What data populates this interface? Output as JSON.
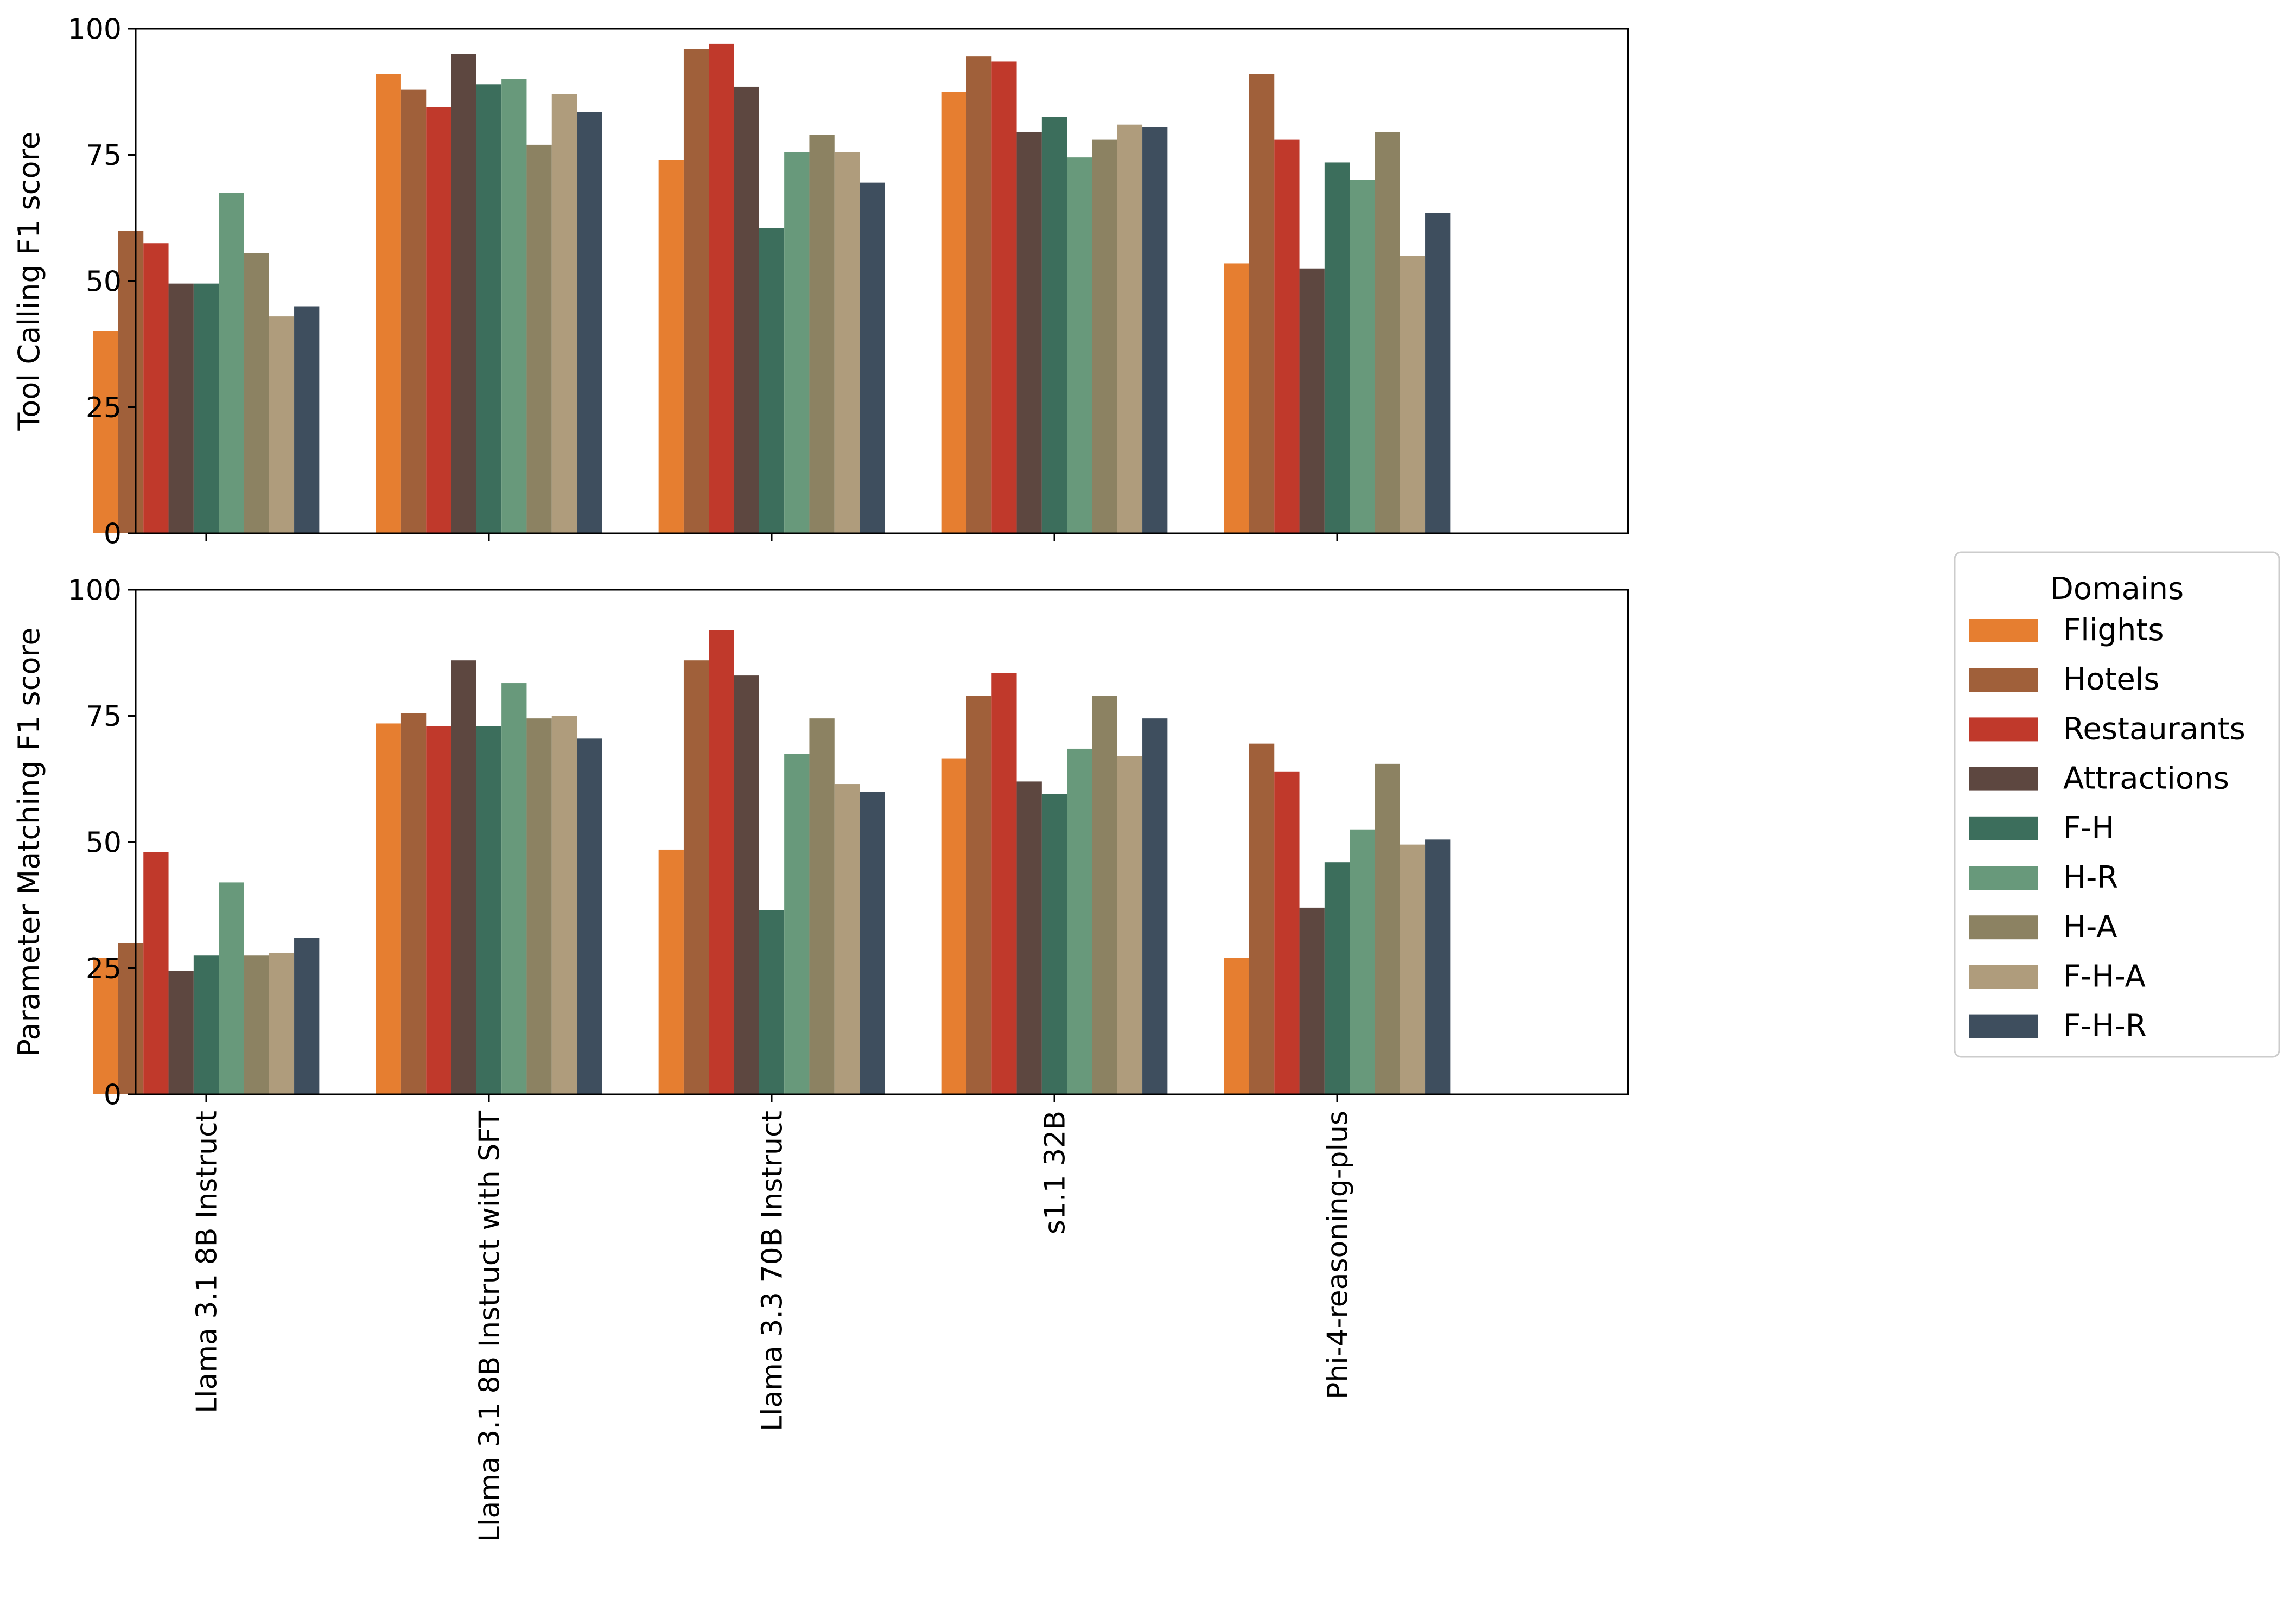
{
  "chart_data": [
    {
      "type": "bar",
      "title": "",
      "xlabel": "",
      "ylabel": "Tool Calling F1 score",
      "ylim": [
        0,
        100
      ],
      "yticks": [
        "0",
        "25",
        "50",
        "75",
        "100"
      ],
      "show_xtick_labels": false,
      "categories": [
        "Llama 3.1 8B Instruct",
        "Llama 3.1 8B Instruct with SFT",
        "Llama 3.3 70B Instruct",
        "s1.1 32B",
        "Phi-4-reasoning-plus"
      ],
      "series": [
        {
          "name": "Flights",
          "color": "#E67E30",
          "values": [
            40,
            91,
            74,
            87.5,
            53.5
          ]
        },
        {
          "name": "Hotels",
          "color": "#A0603A",
          "values": [
            60,
            88,
            96,
            94.5,
            91
          ]
        },
        {
          "name": "Restaurants",
          "color": "#C0392B",
          "values": [
            57.5,
            84.5,
            97,
            93.5,
            78
          ]
        },
        {
          "name": "Attractions",
          "color": "#5D4740",
          "values": [
            49.5,
            95,
            88.5,
            79.5,
            52.5
          ]
        },
        {
          "name": "F-H",
          "color": "#3C6E5C",
          "values": [
            49.5,
            89,
            60.5,
            82.5,
            73.5
          ]
        },
        {
          "name": "H-R",
          "color": "#68997B",
          "values": [
            67.5,
            90,
            75.5,
            74.5,
            70
          ]
        },
        {
          "name": "H-A",
          "color": "#8C8262",
          "values": [
            55.5,
            77,
            79,
            78,
            79.5
          ]
        },
        {
          "name": "F-H-A",
          "color": "#AF9C7C",
          "values": [
            43,
            87,
            75.5,
            81,
            55
          ]
        },
        {
          "name": "F-H-R",
          "color": "#3E4E5E",
          "values": [
            45,
            83.5,
            69.5,
            80.5,
            63.5
          ]
        }
      ]
    },
    {
      "type": "bar",
      "title": "",
      "xlabel": "",
      "ylabel": "Parameter Matching F1 score",
      "ylim": [
        0,
        100
      ],
      "yticks": [
        "0",
        "25",
        "50",
        "75",
        "100"
      ],
      "show_xtick_labels": true,
      "categories": [
        "Llama 3.1 8B Instruct",
        "Llama 3.1 8B Instruct with SFT",
        "Llama 3.3 70B Instruct",
        "s1.1 32B",
        "Phi-4-reasoning-plus"
      ],
      "series": [
        {
          "name": "Flights",
          "color": "#E67E30",
          "values": [
            27,
            73.5,
            48.5,
            66.5,
            27
          ]
        },
        {
          "name": "Hotels",
          "color": "#A0603A",
          "values": [
            30,
            75.5,
            86,
            79,
            69.5
          ]
        },
        {
          "name": "Restaurants",
          "color": "#C0392B",
          "values": [
            48,
            73,
            92,
            83.5,
            64
          ]
        },
        {
          "name": "Attractions",
          "color": "#5D4740",
          "values": [
            24.5,
            86,
            83,
            62,
            37
          ]
        },
        {
          "name": "F-H",
          "color": "#3C6E5C",
          "values": [
            27.5,
            73,
            36.5,
            59.5,
            46
          ]
        },
        {
          "name": "H-R",
          "color": "#68997B",
          "values": [
            42,
            81.5,
            67.5,
            68.5,
            52.5
          ]
        },
        {
          "name": "H-A",
          "color": "#8C8262",
          "values": [
            27.5,
            74.5,
            74.5,
            79,
            65.5
          ]
        },
        {
          "name": "F-H-A",
          "color": "#AF9C7C",
          "values": [
            28,
            75,
            61.5,
            67,
            49.5
          ]
        },
        {
          "name": "F-H-R",
          "color": "#3E4E5E",
          "values": [
            31,
            70.5,
            60,
            74.5,
            50.5
          ]
        }
      ]
    }
  ],
  "legend": {
    "title": "Domains",
    "placement": "right",
    "items": [
      {
        "label": "Flights",
        "color": "#E67E30"
      },
      {
        "label": "Hotels",
        "color": "#A0603A"
      },
      {
        "label": "Restaurants",
        "color": "#C0392B"
      },
      {
        "label": "Attractions",
        "color": "#5D4740"
      },
      {
        "label": "F-H",
        "color": "#3C6E5C"
      },
      {
        "label": "H-R",
        "color": "#68997B"
      },
      {
        "label": "H-A",
        "color": "#8C8262"
      },
      {
        "label": "F-H-A",
        "color": "#AF9C7C"
      },
      {
        "label": "F-H-R",
        "color": "#3E4E5E"
      }
    ]
  }
}
